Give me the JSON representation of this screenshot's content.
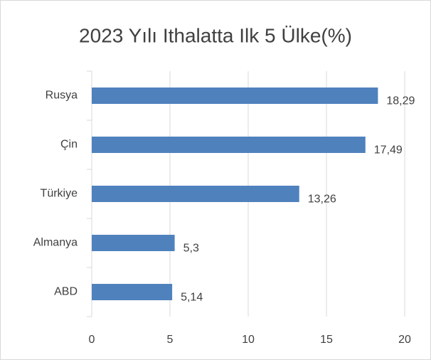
{
  "chart_data": {
    "type": "bar",
    "orientation": "horizontal",
    "title": "2023 Yılı Ithalatta Ilk 5 Ülke(%)",
    "categories": [
      "Rusya",
      "Çin",
      "Türkiye",
      "Almanya",
      "ABD"
    ],
    "values": [
      18.29,
      17.49,
      13.26,
      5.3,
      5.14
    ],
    "value_labels": [
      "18,29",
      "17,49",
      "13,26",
      "5,3",
      "5,14"
    ],
    "color": "#4f81bd",
    "xlim": [
      0,
      20
    ],
    "xticks": [
      0,
      5,
      10,
      15,
      20
    ],
    "grid": true
  }
}
